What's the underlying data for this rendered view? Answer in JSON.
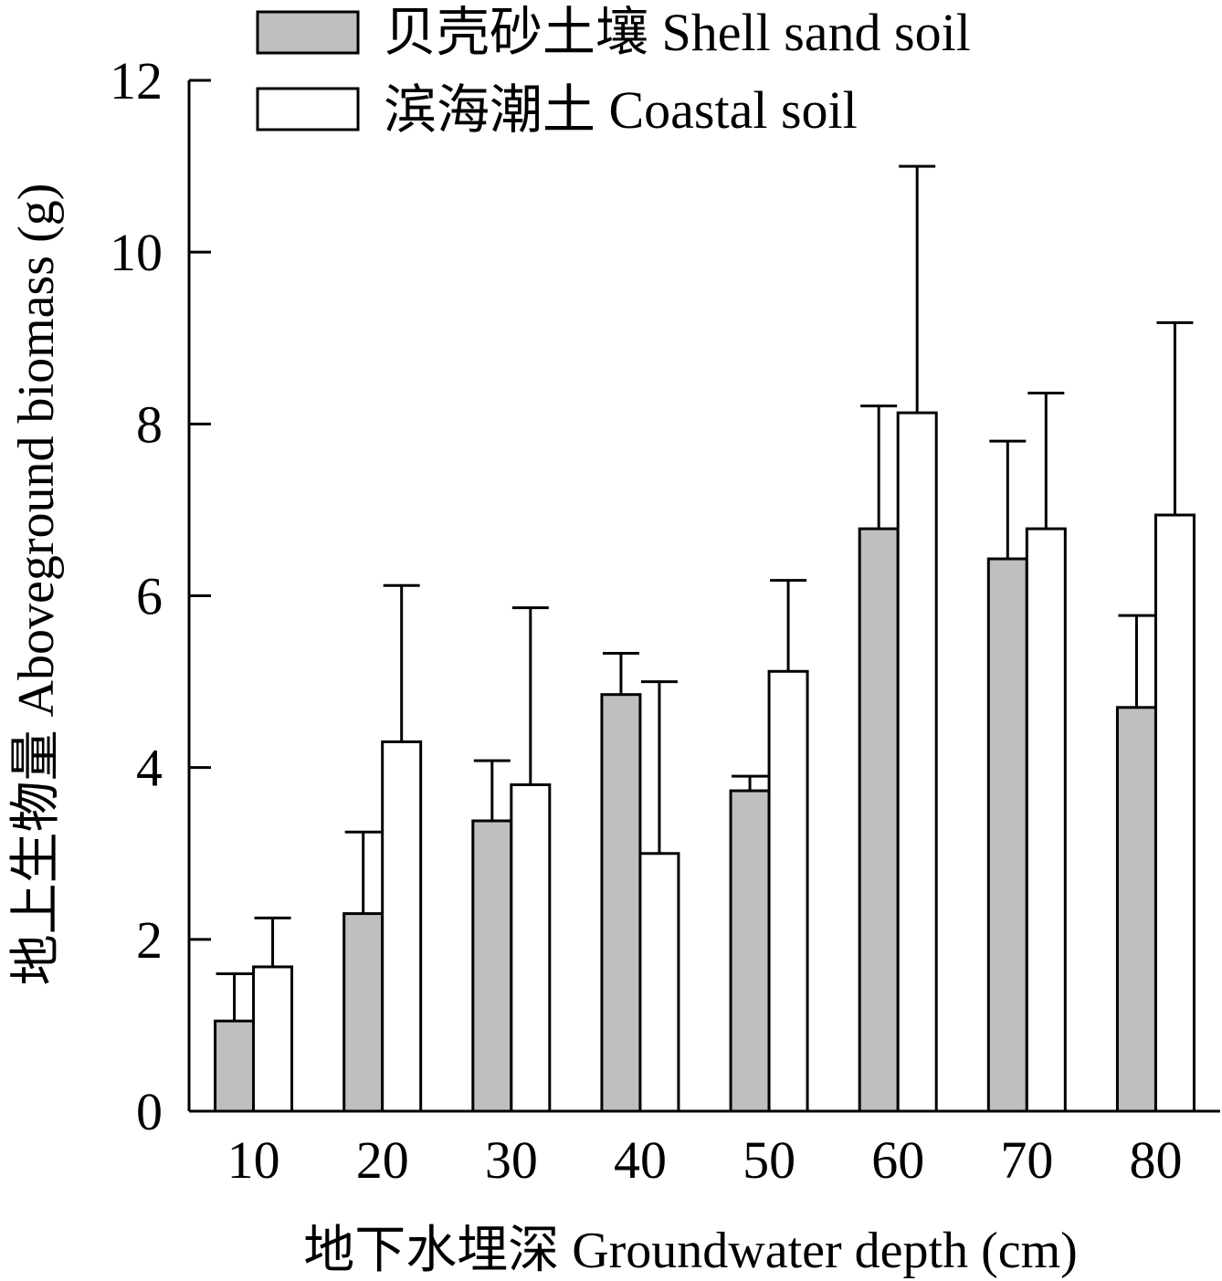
{
  "chart_data": {
    "type": "bar",
    "xlabel": "地下水埋深 Groundwater depth (cm)",
    "ylabel": "地上生物量 Aboveground biomass (g)",
    "ylim": [
      0,
      12
    ],
    "yticks": [
      "0",
      "2",
      "4",
      "6",
      "8",
      "10",
      "12"
    ],
    "categories": [
      "10",
      "20",
      "30",
      "40",
      "50",
      "60",
      "70",
      "80"
    ],
    "legend_position": "top-left",
    "grid": false,
    "series": [
      {
        "name": "贝壳砂土壤 Shell sand soil",
        "color": "#bfbfbf",
        "values": [
          1.05,
          2.3,
          3.38,
          4.85,
          3.73,
          6.78,
          6.43,
          4.7
        ],
        "error": [
          0.55,
          0.95,
          0.7,
          0.48,
          0.17,
          1.43,
          1.37,
          1.07
        ]
      },
      {
        "name": "滨海潮土 Coastal soil",
        "color": "#ffffff",
        "values": [
          1.68,
          4.3,
          3.8,
          3.0,
          5.12,
          8.13,
          6.78,
          6.94
        ],
        "error": [
          0.57,
          1.82,
          2.06,
          2.0,
          1.06,
          2.87,
          1.58,
          2.24
        ]
      }
    ]
  }
}
